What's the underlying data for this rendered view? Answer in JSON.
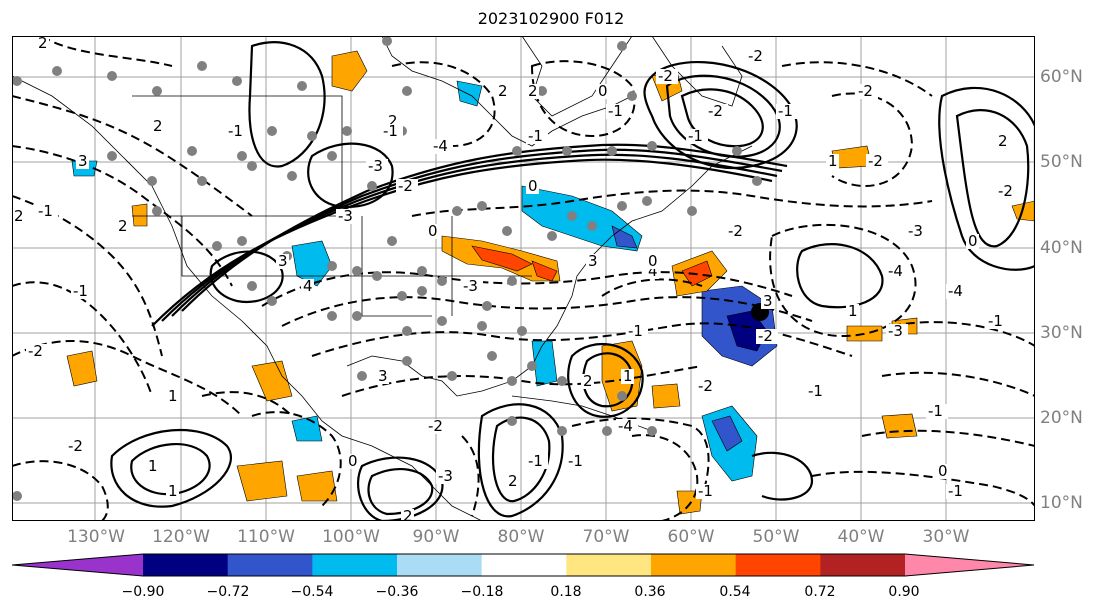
{
  "title": "2023102900 F012",
  "lon_labels": [
    "130°W",
    "120°W",
    "110°W",
    "100°W",
    "90°W",
    "80°W",
    "70°W",
    "60°W",
    "50°W",
    "40°W",
    "30°W"
  ],
  "lat_labels": [
    "60°N",
    "50°N",
    "40°N",
    "30°N",
    "20°N",
    "10°N"
  ],
  "colorbar": {
    "ticks": [
      "−0.90",
      "−0.72",
      "−0.54",
      "−0.36",
      "−0.18",
      "0.18",
      "0.36",
      "0.54",
      "0.72",
      "0.90"
    ],
    "colors": [
      "#9933cc",
      "#000080",
      "#3355cc",
      "#00bbee",
      "#aaddf5",
      "#ffffff",
      "#ffe680",
      "#ffa500",
      "#ff4500",
      "#b22222",
      "#ff88aa"
    ]
  },
  "contour_labels": [
    "2",
    "2",
    "3",
    "2",
    "2",
    "1",
    "3",
    "-2",
    "-1",
    "-3",
    "-1",
    "-2",
    "4",
    "-3",
    "4",
    "3",
    "0",
    "0",
    "-1",
    "2",
    "-1",
    "2",
    "-3",
    "-4",
    "0",
    "-3",
    "-1",
    "-2",
    "1",
    "2",
    "-1",
    "3",
    "-2",
    "1",
    "-2",
    "-2",
    "-3",
    "-4",
    "0",
    "-2",
    "-1",
    "0",
    "-1",
    "-4",
    "3",
    "-2",
    "-2",
    "-1",
    "-1",
    "-2",
    "-3",
    "1",
    "1",
    "2",
    "-1",
    "0",
    "-1",
    "-4",
    "1",
    "2",
    "2",
    "-2",
    "-2",
    "-1",
    "-2",
    "-1",
    "0",
    "-1",
    "2",
    "-1"
  ],
  "colors": {
    "land_outline": "#000000",
    "grid": "#a0a0a0",
    "dots": "#808080",
    "marker": "#000000"
  }
}
